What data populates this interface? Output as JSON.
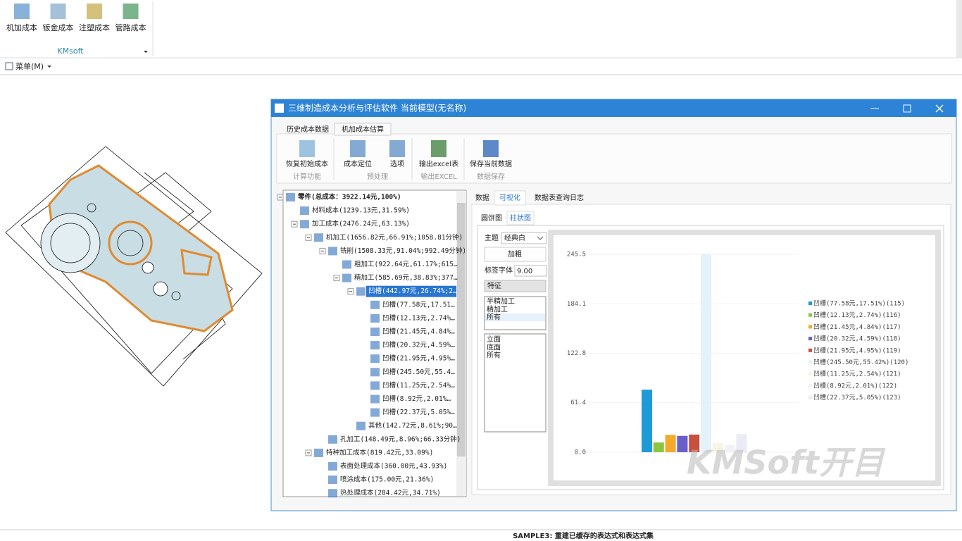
{
  "ribbon": {
    "buttons": [
      "机加成本",
      "钣金成本",
      "注塑成本",
      "管路成本"
    ],
    "group": "KMsoft",
    "menu": "菜单(M)"
  },
  "window": {
    "title": "三维制造成本分析与评估软件 当前模型(无名称)",
    "tabs": [
      "历史成本数据",
      "机加成本估算"
    ],
    "toolbar": [
      {
        "buttons": [
          "恢复初始成本"
        ],
        "label": "计算功能"
      },
      {
        "buttons": [
          "成本定位",
          "选项"
        ],
        "label": "预处理"
      },
      {
        "buttons": [
          "输出excel表"
        ],
        "label": "输出EXCEL"
      },
      {
        "buttons": [
          "保存当前数据"
        ],
        "label": "数据保存"
      }
    ],
    "tree": {
      "label": "零件(总成本：3922.14元,100%)",
      "children": [
        {
          "label": "材料成本(1239.13元,31.59%)"
        },
        {
          "label": "加工成本(2476.24元,63.13%)",
          "children": [
            {
              "label": "机加工(1656.82元,66.91%;1058.81分钟)",
              "children": [
                {
                  "label": "铣削(1508.33元,91.04%;992.49分钟)",
                  "children": [
                    {
                      "label": "粗加工(922.64元,61.17%;615…"
                    },
                    {
                      "label": "精加工(585.69元,38.83%;377…",
                      "children": [
                        {
                          "label": "凹槽(442.97元,26.74%;2…",
                          "children": [
                            {
                              "label": "凹槽(77.58元,17.51…"
                            },
                            {
                              "label": "凹槽(12.13元,2.74%…"
                            },
                            {
                              "label": "凹槽(21.45元,4.84%…"
                            },
                            {
                              "label": "凹槽(20.32元,4.59%…"
                            },
                            {
                              "label": "凹槽(21.95元,4.95%…"
                            },
                            {
                              "label": "凹槽(245.50元,55.4…"
                            },
                            {
                              "label": "凹槽(11.25元,2.54%…"
                            },
                            {
                              "label": "凹槽(8.92元,2.01%…"
                            },
                            {
                              "label": "凹槽(22.37元,5.05%…"
                            }
                          ]
                        },
                        {
                          "label": "其他(142.72元,8.61%;90…"
                        }
                      ]
                    }
                  ]
                },
                {
                  "label": "孔加工(148.49元,8.96%;66.33分钟)"
                }
              ]
            },
            {
              "label": "特种加工成本(819.42元,33.09%)",
              "children": [
                {
                  "label": "表面处理成本(360.00元,43.93%)"
                },
                {
                  "label": "喷涂成本(175.00元,21.36%)"
                },
                {
                  "label": "热处理成本(284.42元,34.71%)"
                }
              ]
            }
          ]
        }
      ]
    },
    "view_tabs": [
      "数据",
      "可视化",
      "数据表查询日志"
    ],
    "chart_tabs": [
      "圆饼图",
      "柱状图"
    ],
    "controls": {
      "theme_label": "主题",
      "theme": "经典白",
      "bold": "加粗",
      "font_label": "标签字体",
      "font_size": "9.00",
      "feature": "特征",
      "list1": [
        "半精加工",
        "精加工",
        "所有"
      ],
      "list2": [
        "立面",
        "底面",
        "所有"
      ]
    },
    "watermark": "KMSoft开目"
  },
  "chart_data": {
    "type": "bar",
    "ylim": [
      0,
      245.5
    ],
    "yticks": [
      {
        "value": 0,
        "label": "0.0"
      },
      61.4,
      122.8,
      184.1,
      245.5
    ],
    "series": [
      {
        "name": "凹槽(77.58元,17.51%)(115)",
        "color": "#1e9bd7",
        "values": [
          77.58
        ]
      },
      {
        "name": "凹槽(12.13元,2.74%)(116)",
        "color": "#8cc540",
        "values": [
          12.13
        ]
      },
      {
        "name": "凹槽(21.45元,4.84%)(117)",
        "color": "#f4a92a",
        "values": [
          21.45
        ]
      },
      {
        "name": "凹槽(20.32元,4.59%)(118)",
        "color": "#6a5fc9",
        "values": [
          20.32
        ]
      },
      {
        "name": "凹槽(21.95元,4.95%)(119)",
        "color": "#c9503f",
        "values": [
          21.95
        ]
      },
      {
        "name": "凹槽(245.50元,55.42%)(120)",
        "color": "#e4f2f9",
        "values": [
          245.5
        ]
      },
      {
        "name": "凹槽(11.25元,2.54%)(121)",
        "color": "#f8f4e4",
        "values": [
          11.25
        ]
      },
      {
        "name": "凹槽(8.92元,2.01%)(122)",
        "color": "#f2f2f4",
        "values": [
          8.92
        ]
      },
      {
        "name": "凹槽(22.37元,5.05%)(123)",
        "color": "#ebeaf7",
        "values": [
          22.37
        ]
      }
    ]
  },
  "status": "SAMPLE3: 重建已缓存的表达式和表达式集"
}
